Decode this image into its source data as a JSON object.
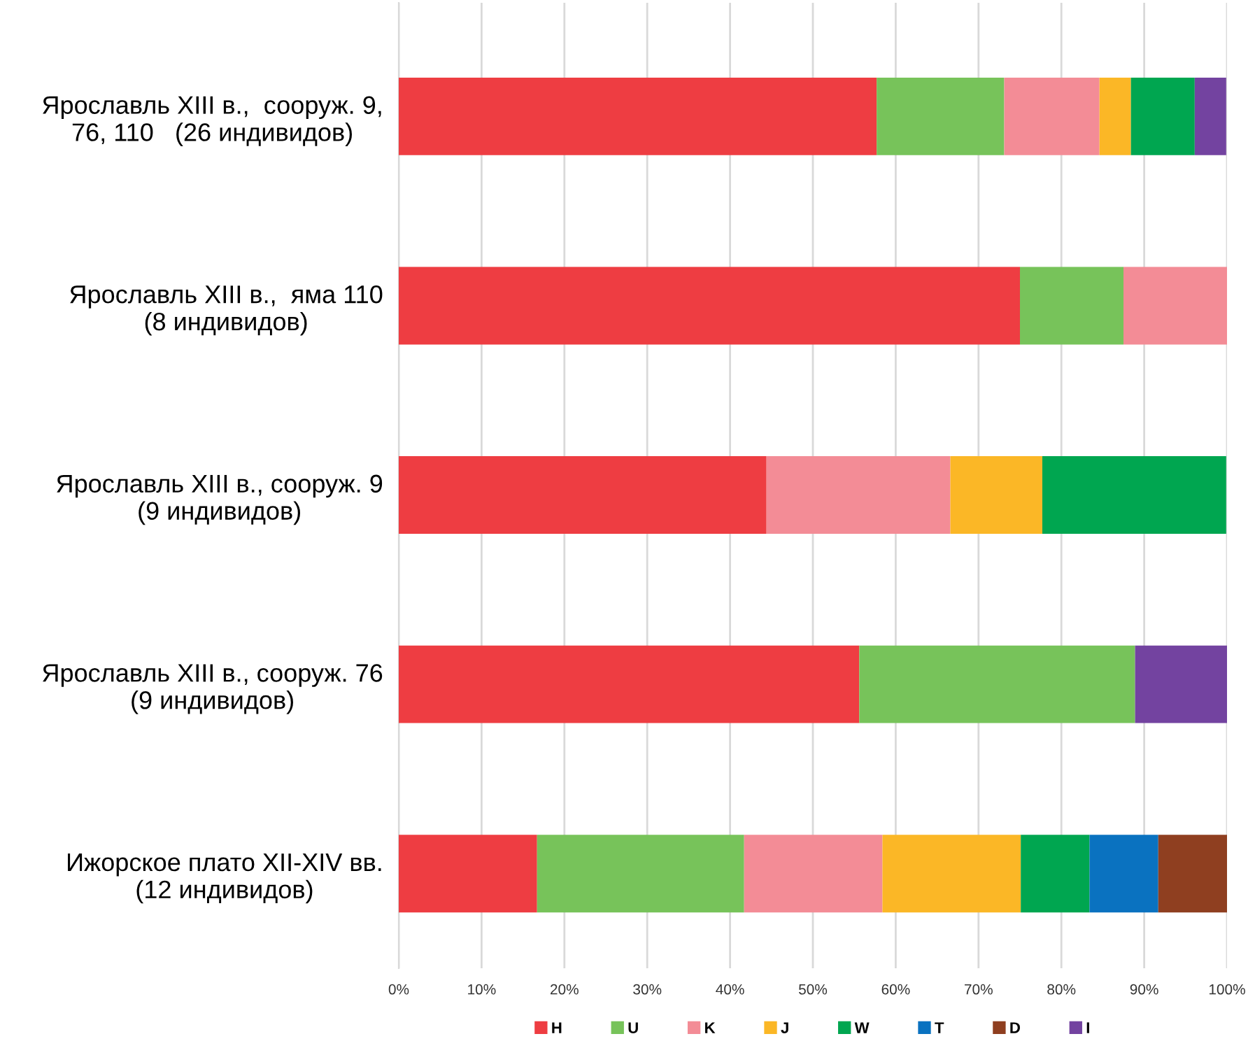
{
  "chart_data": {
    "type": "bar",
    "orientation": "horizontal",
    "stacked": true,
    "categories": [
      "Ярославль XIII в.,  сооруж. 9,\n76, 110   (26 индивидов)",
      "Ярославль XIII в.,  яма 110\n(8 индивидов)",
      "Ярославль XIII в., сооруж. 9\n(9 индивидов)",
      "Ярославль XIII в., сооруж. 76\n(9 индивидов)",
      "Ижорское плато XII-XIV вв.\n(12 индивидов)"
    ],
    "series": [
      {
        "name": "H",
        "color": "#ee3d42",
        "values": [
          57.7,
          75.0,
          44.4,
          55.6,
          16.7
        ]
      },
      {
        "name": "U",
        "color": "#77c35a",
        "values": [
          15.4,
          12.5,
          0,
          33.3,
          25.0
        ]
      },
      {
        "name": "K",
        "color": "#f38c96",
        "values": [
          11.5,
          12.5,
          22.2,
          0,
          16.7
        ]
      },
      {
        "name": "J",
        "color": "#fbb726",
        "values": [
          3.8,
          0,
          11.1,
          0,
          16.7
        ]
      },
      {
        "name": "W",
        "color": "#00a650",
        "values": [
          7.7,
          0,
          22.2,
          0,
          8.3
        ]
      },
      {
        "name": "T",
        "color": "#0a72c0",
        "values": [
          0,
          0,
          0,
          0,
          8.3
        ]
      },
      {
        "name": "D",
        "color": "#8f3f20",
        "values": [
          0,
          0,
          0,
          0,
          8.3
        ]
      },
      {
        "name": "I",
        "color": "#7343a0",
        "values": [
          3.8,
          0,
          0,
          11.1,
          0
        ]
      }
    ],
    "xlim": [
      0,
      100
    ],
    "xticks": [
      {
        "value": 0,
        "label": "0%"
      },
      {
        "value": 10,
        "label": "10%"
      },
      {
        "value": 20,
        "label": "20%"
      },
      {
        "value": 30,
        "label": "30%"
      },
      {
        "value": 40,
        "label": "40%"
      },
      {
        "value": 50,
        "label": "50%"
      },
      {
        "value": 60,
        "label": "60%"
      },
      {
        "value": 70,
        "label": "70%"
      },
      {
        "value": 80,
        "label": "80%"
      },
      {
        "value": 90,
        "label": "90%"
      },
      {
        "value": 100,
        "label": "100%"
      }
    ],
    "grid": "x",
    "legend": "bottom"
  }
}
